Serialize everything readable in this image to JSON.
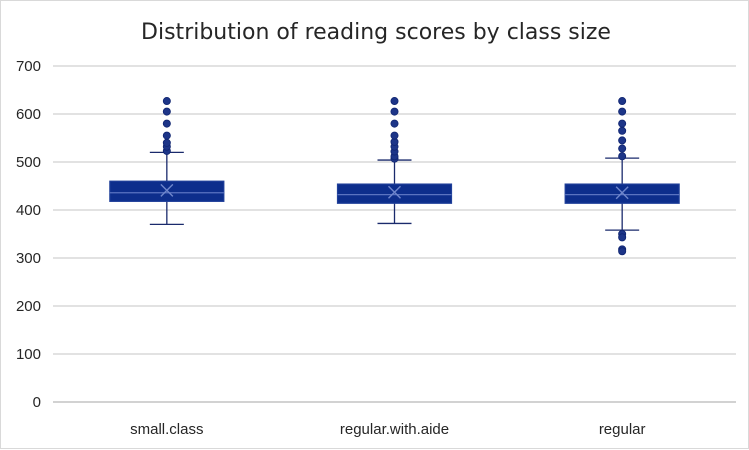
{
  "chart_data": {
    "type": "box",
    "title": "Distribution of reading scores by class size",
    "xlabel": "",
    "ylabel": "",
    "ylim": [
      0,
      700
    ],
    "yticks": [
      "0",
      "100",
      "200",
      "300",
      "400",
      "500",
      "600",
      "700"
    ],
    "grid": true,
    "legend": "none",
    "box_color": "#0d2e8c",
    "box_edge_color": "#1f3f99",
    "line_color": "#1a2a6c",
    "categories": [
      "small.class",
      "regular.with.aide",
      "regular"
    ],
    "boxes": [
      {
        "category": "small.class",
        "whisker_low": 370,
        "q1": 418,
        "median": 436,
        "mean": 441,
        "q3": 460,
        "whisker_high": 520,
        "outliers": [
          523,
          532,
          540,
          555,
          580,
          605,
          627
        ]
      },
      {
        "category": "regular.with.aide",
        "whisker_low": 372,
        "q1": 414,
        "median": 432,
        "mean": 437,
        "q3": 454,
        "whisker_high": 504,
        "outliers": [
          507,
          512,
          522,
          532,
          542,
          555,
          580,
          605,
          627
        ]
      },
      {
        "category": "regular",
        "whisker_low": 358,
        "q1": 414,
        "median": 432,
        "mean": 436,
        "q3": 454,
        "whisker_high": 508,
        "outliers": [
          512,
          528,
          545,
          565,
          580,
          605,
          627,
          350,
          343,
          318,
          314
        ]
      }
    ]
  }
}
